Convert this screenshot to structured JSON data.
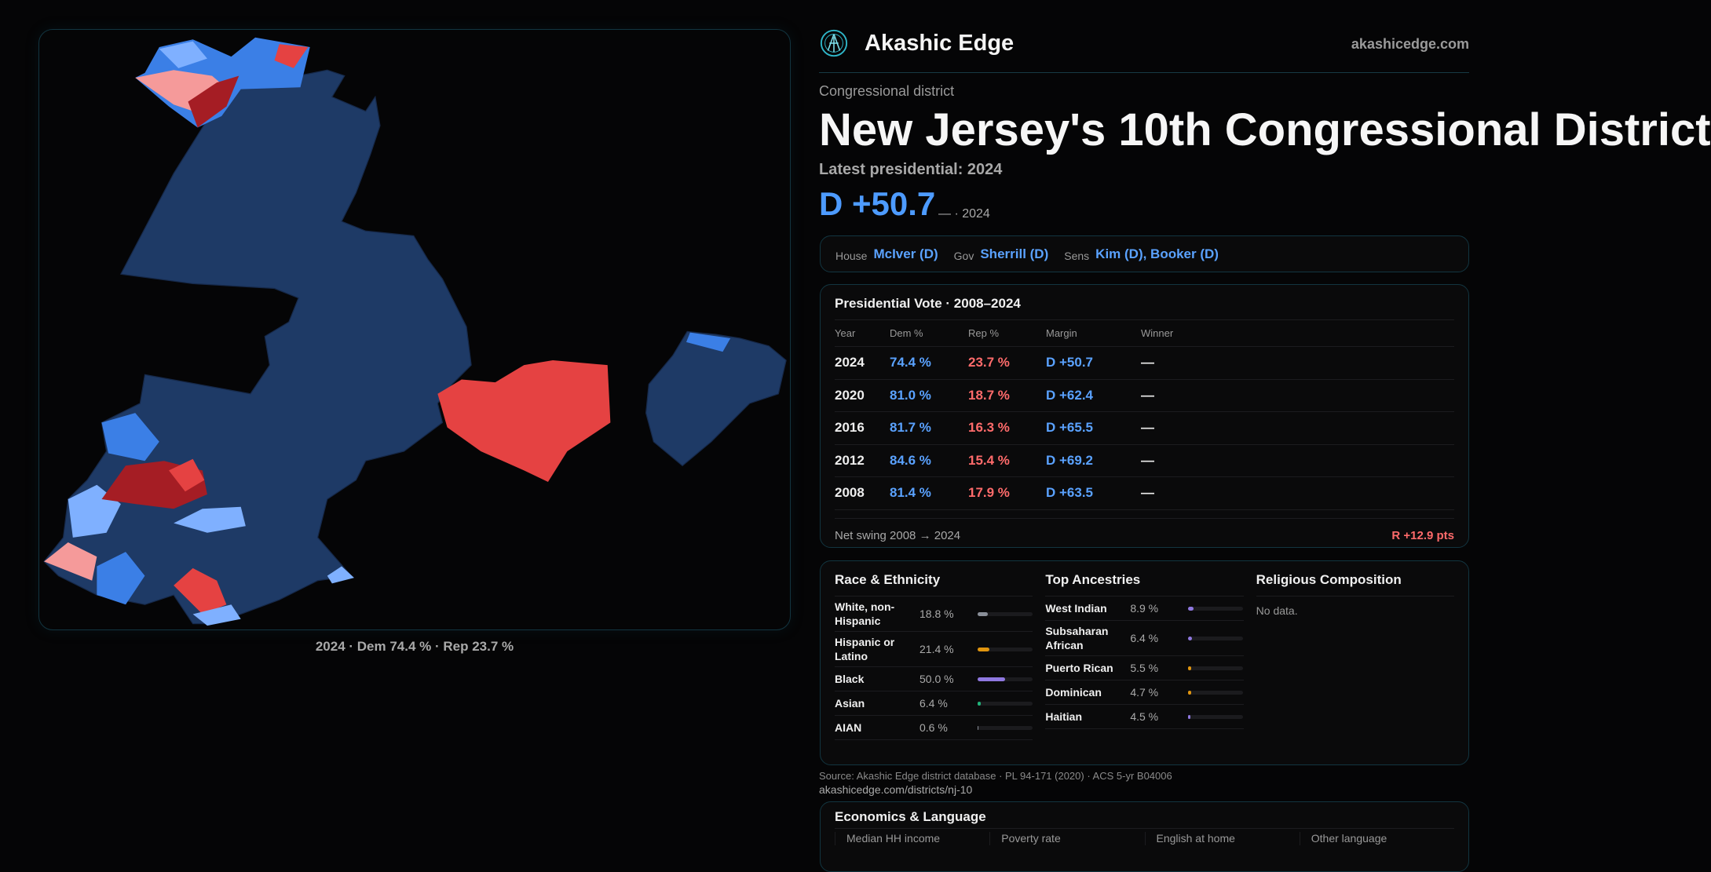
{
  "map": {
    "caption": "2024 · Dem 74.4 % · Rep 23.7 %",
    "colors": {
      "safe_dem": "#1e3a66",
      "dem": "#3b7fe6",
      "lean_dem": "#7fb0ff",
      "lean_rep": "#f59a9a",
      "rep": "#e54242",
      "safe_rep": "#a51d24"
    }
  },
  "header": {
    "brand": "Akashic Edge",
    "site": "akashicedge.com",
    "logo_icon": "akashic-logo-icon"
  },
  "district": {
    "kicker": "Congressional district",
    "title": "New Jersey's 10th Congressional District",
    "latest": "Latest presidential: 2024",
    "margin": "D +50.7",
    "margin_sub": "— · 2024"
  },
  "officials": [
    {
      "label": "House",
      "value": "McIver (D)"
    },
    {
      "label": "Gov",
      "value": "Sherrill (D)"
    },
    {
      "label": "Sens",
      "value": "Kim (D), Booker (D)"
    }
  ],
  "presidential": {
    "title": "Presidential Vote · 2008–2024",
    "headers": [
      "Year",
      "Dem %",
      "Rep %",
      "Margin",
      "Winner"
    ],
    "rows": [
      [
        "2024",
        "74.4 %",
        "23.7 %",
        "D +50.7",
        "—"
      ],
      [
        "2020",
        "81.0 %",
        "18.7 %",
        "D +62.4",
        "—"
      ],
      [
        "2016",
        "81.7 %",
        "16.3 %",
        "D +65.5",
        "—"
      ],
      [
        "2012",
        "84.6 %",
        "15.4 %",
        "D +69.2",
        "—"
      ],
      [
        "2008",
        "81.4 %",
        "17.9 %",
        "D +63.5",
        "—"
      ]
    ],
    "swing_label": "Net swing 2008 → 2024",
    "swing_value": "R +12.9 pts"
  },
  "race": {
    "title": "Race & Ethnicity",
    "items": [
      {
        "label": "White, non-Hispanic",
        "pct": "18.8 %",
        "value": 18.8,
        "color": "#8a8f99"
      },
      {
        "label": "Hispanic or Latino",
        "pct": "21.4 %",
        "value": 21.4,
        "color": "#e0950f"
      },
      {
        "label": "Black",
        "pct": "50.0 %",
        "value": 50.0,
        "color": "#8f78e0"
      },
      {
        "label": "Asian",
        "pct": "6.4 %",
        "value": 6.4,
        "color": "#21b37a"
      },
      {
        "label": "AIAN",
        "pct": "0.6 %",
        "value": 0.6,
        "color": "#8a8f99"
      }
    ]
  },
  "ancestry": {
    "title": "Top Ancestries",
    "items": [
      {
        "label": "West Indian",
        "pct": "8.9 %",
        "value": 8.9,
        "color": "#8f78e0"
      },
      {
        "label": "Subsaharan African",
        "pct": "6.4 %",
        "value": 6.4,
        "color": "#8f78e0"
      },
      {
        "label": "Puerto Rican",
        "pct": "5.5 %",
        "value": 5.5,
        "color": "#e0950f"
      },
      {
        "label": "Dominican",
        "pct": "4.7 %",
        "value": 4.7,
        "color": "#e0950f"
      },
      {
        "label": "Haitian",
        "pct": "4.5 %",
        "value": 4.5,
        "color": "#8f78e0"
      }
    ]
  },
  "religion": {
    "title": "Religious Composition",
    "empty": "No data."
  },
  "economics": {
    "title": "Economics & Language",
    "stats": [
      "Median HH income",
      "Poverty rate",
      "English at home",
      "Other language"
    ]
  },
  "footer": {
    "source": "Source: Akashic Edge district database · PL 94-171 (2020) · ACS 5-yr B04006",
    "url": "akashicedge.com/districts/nj-10"
  }
}
